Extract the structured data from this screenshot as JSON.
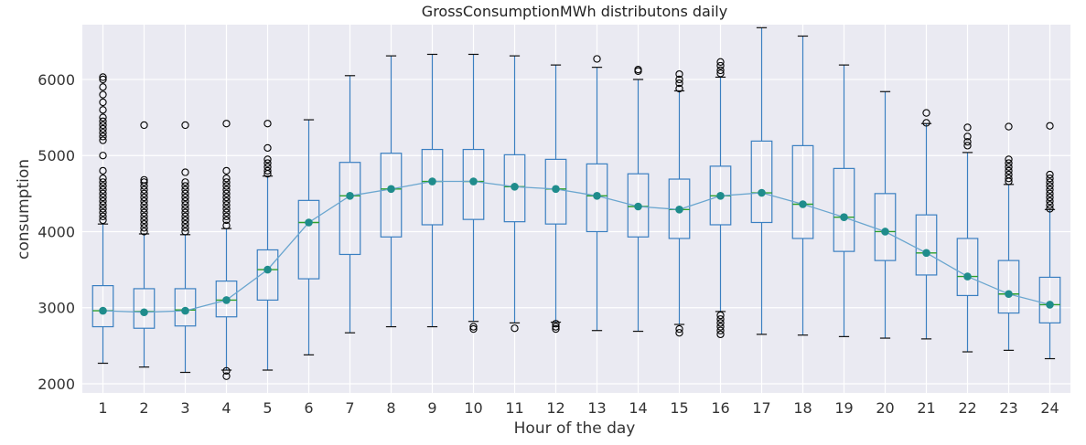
{
  "chart_data": {
    "type": "box",
    "title": "GrossConsumptionMWh distributons daily",
    "xlabel": "Hour of the day",
    "ylabel": "consumption",
    "ylim": [
      1880,
      6720
    ],
    "yticks": [
      2000,
      3000,
      4000,
      5000,
      6000
    ],
    "grid": true,
    "legend": "none",
    "colors": {
      "background": "#eaeaf2",
      "grid": "#ffffff",
      "box": "#3a7fc1",
      "median": "#2ca02c",
      "mean_marker": "#1f8c8c",
      "mean_line": "#6aa6cf",
      "outlier": "#000000"
    },
    "categories": [
      "1",
      "2",
      "3",
      "4",
      "5",
      "6",
      "7",
      "8",
      "9",
      "10",
      "11",
      "12",
      "13",
      "14",
      "15",
      "16",
      "17",
      "18",
      "19",
      "20",
      "21",
      "22",
      "23",
      "24"
    ],
    "boxes": [
      {
        "x": "1",
        "whisker_low": 2270,
        "q1": 2750,
        "median": 2960,
        "q3": 3290,
        "whisker_high": 4100,
        "outliers": [
          4150,
          4200,
          4250,
          4300,
          4350,
          4400,
          4450,
          4500,
          4550,
          4600,
          4650,
          4700,
          4800,
          5000,
          5200,
          5250,
          5300,
          5350,
          5400,
          5450,
          5500,
          5600,
          5700,
          5800,
          5900,
          6000,
          6030
        ]
      },
      {
        "x": "2",
        "whisker_low": 2220,
        "q1": 2730,
        "median": 2950,
        "q3": 3250,
        "whisker_high": 3970,
        "outliers": [
          4000,
          4050,
          4100,
          4150,
          4200,
          4250,
          4300,
          4350,
          4400,
          4450,
          4500,
          4550,
          4600,
          4650,
          4680,
          5400
        ]
      },
      {
        "x": "3",
        "whisker_low": 2150,
        "q1": 2760,
        "median": 2970,
        "q3": 3250,
        "whisker_high": 3960,
        "outliers": [
          4000,
          4050,
          4100,
          4150,
          4200,
          4250,
          4300,
          4350,
          4400,
          4450,
          4500,
          4550,
          4600,
          4650,
          4780,
          5400
        ]
      },
      {
        "x": "4",
        "whisker_low": 2180,
        "q1": 2880,
        "median": 3100,
        "q3": 3350,
        "whisker_high": 4040,
        "outliers": [
          2100,
          2170,
          4080,
          4150,
          4200,
          4250,
          4300,
          4350,
          4400,
          4450,
          4500,
          4550,
          4600,
          4650,
          4700,
          4800,
          5420
        ]
      },
      {
        "x": "5",
        "whisker_low": 2180,
        "q1": 3100,
        "median": 3500,
        "q3": 3760,
        "whisker_high": 4730,
        "outliers": [
          4760,
          4800,
          4850,
          4900,
          4950,
          5100,
          5420
        ]
      },
      {
        "x": "6",
        "whisker_low": 2380,
        "q1": 3380,
        "median": 4120,
        "q3": 4410,
        "whisker_high": 5470,
        "outliers": []
      },
      {
        "x": "7",
        "whisker_low": 2670,
        "q1": 3700,
        "median": 4470,
        "q3": 4910,
        "whisker_high": 6050,
        "outliers": []
      },
      {
        "x": "8",
        "whisker_low": 2750,
        "q1": 3930,
        "median": 4560,
        "q3": 5030,
        "whisker_high": 6310,
        "outliers": []
      },
      {
        "x": "9",
        "whisker_low": 2750,
        "q1": 4090,
        "median": 4660,
        "q3": 5080,
        "whisker_high": 6330,
        "outliers": []
      },
      {
        "x": "10",
        "whisker_low": 2820,
        "q1": 4160,
        "median": 4660,
        "q3": 5080,
        "whisker_high": 6330,
        "outliers": [
          2720,
          2750
        ]
      },
      {
        "x": "11",
        "whisker_low": 2800,
        "q1": 4130,
        "median": 4590,
        "q3": 5010,
        "whisker_high": 6310,
        "outliers": [
          2730
        ]
      },
      {
        "x": "12",
        "whisker_low": 2810,
        "q1": 4100,
        "median": 4560,
        "q3": 4950,
        "whisker_high": 6190,
        "outliers": [
          2720,
          2750,
          2790
        ]
      },
      {
        "x": "13",
        "whisker_low": 2700,
        "q1": 4000,
        "median": 4470,
        "q3": 4890,
        "whisker_high": 6160,
        "outliers": [
          6270
        ]
      },
      {
        "x": "14",
        "whisker_low": 2690,
        "q1": 3930,
        "median": 4330,
        "q3": 4760,
        "whisker_high": 6000,
        "outliers": [
          6110,
          6130
        ]
      },
      {
        "x": "15",
        "whisker_low": 2780,
        "q1": 3910,
        "median": 4290,
        "q3": 4690,
        "whisker_high": 5850,
        "outliers": [
          2670,
          2720,
          5880,
          5950,
          6000,
          6070
        ]
      },
      {
        "x": "16",
        "whisker_low": 2950,
        "q1": 4090,
        "median": 4470,
        "q3": 4860,
        "whisker_high": 6030,
        "outliers": [
          2650,
          2700,
          2750,
          2800,
          2850,
          2900,
          6080,
          6120,
          6180,
          6230
        ]
      },
      {
        "x": "17",
        "whisker_low": 2650,
        "q1": 4120,
        "median": 4510,
        "q3": 5190,
        "whisker_high": 6680,
        "outliers": []
      },
      {
        "x": "18",
        "whisker_low": 2640,
        "q1": 3910,
        "median": 4360,
        "q3": 5130,
        "whisker_high": 6570,
        "outliers": []
      },
      {
        "x": "19",
        "whisker_low": 2620,
        "q1": 3740,
        "median": 4190,
        "q3": 4830,
        "whisker_high": 6190,
        "outliers": []
      },
      {
        "x": "20",
        "whisker_low": 2600,
        "q1": 3620,
        "median": 4000,
        "q3": 4500,
        "whisker_high": 5840,
        "outliers": []
      },
      {
        "x": "21",
        "whisker_low": 2590,
        "q1": 3430,
        "median": 3720,
        "q3": 4220,
        "whisker_high": 5420,
        "outliers": [
          5430,
          5560
        ]
      },
      {
        "x": "22",
        "whisker_low": 2420,
        "q1": 3160,
        "median": 3410,
        "q3": 3910,
        "whisker_high": 5040,
        "outliers": [
          5130,
          5180,
          5250,
          5370
        ]
      },
      {
        "x": "23",
        "whisker_low": 2440,
        "q1": 2930,
        "median": 3180,
        "q3": 3620,
        "whisker_high": 4620,
        "outliers": [
          4660,
          4700,
          4750,
          4800,
          4850,
          4900,
          4950,
          5380
        ]
      },
      {
        "x": "24",
        "whisker_low": 2330,
        "q1": 2800,
        "median": 3040,
        "q3": 3400,
        "whisker_high": 4290,
        "outliers": [
          4300,
          4350,
          4400,
          4450,
          4500,
          4550,
          4600,
          4650,
          4700,
          4750,
          5390
        ]
      }
    ],
    "mean_series": [
      2960,
      2940,
      2960,
      3100,
      3500,
      4120,
      4470,
      4560,
      4660,
      4660,
      4590,
      4560,
      4470,
      4330,
      4290,
      4470,
      4510,
      4360,
      4190,
      4000,
      3720,
      3410,
      3180,
      3040
    ]
  }
}
